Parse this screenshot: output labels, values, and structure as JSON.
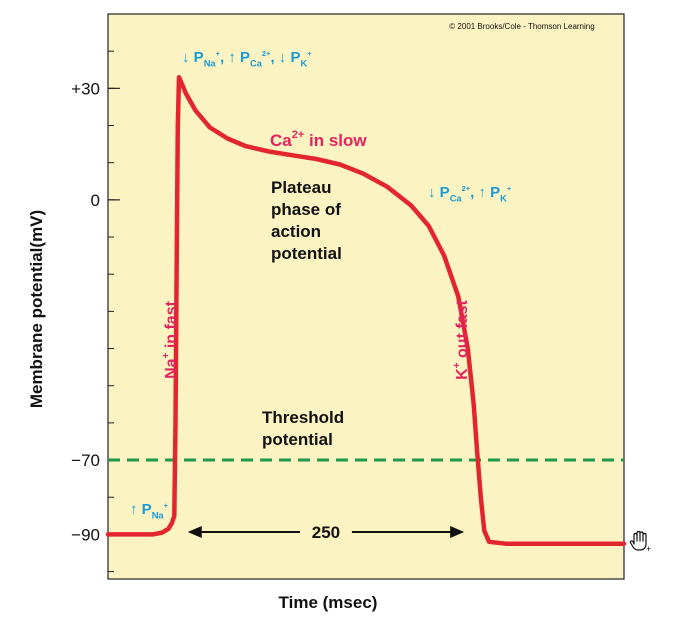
{
  "colors": {
    "plot_bg": "#fbf3c2",
    "curve": "#e3262e",
    "threshold": "#1e9a4a",
    "cyan": "#1a9bd7",
    "pink": "#e0245e",
    "text": "#111111",
    "axis": "#222222"
  },
  "copyright": "© 2001 Brooks/Cole - Thomson Learning",
  "chart_data": {
    "type": "line",
    "title": "",
    "xlabel": "Time (msec)",
    "ylabel": "Membrane potential(mV)",
    "yticks": [
      {
        "value": 30,
        "label": "+30"
      },
      {
        "value": 0,
        "label": "0"
      },
      {
        "value": -70,
        "label": "−70"
      },
      {
        "value": -90,
        "label": "−90"
      }
    ],
    "ylim": [
      -102,
      50
    ],
    "xlim": [
      -56,
      380
    ],
    "grid": false,
    "series": [
      {
        "points": [
          [
            -56,
            -90
          ],
          [
            -18,
            -90
          ],
          [
            -10,
            -89.5
          ],
          [
            -5,
            -88.5
          ],
          [
            -2,
            -87
          ],
          [
            0,
            -85
          ],
          [
            1,
            -60
          ],
          [
            2,
            -20
          ],
          [
            3,
            20
          ],
          [
            4,
            33
          ],
          [
            6,
            31.5
          ],
          [
            10,
            28.5
          ],
          [
            18,
            24
          ],
          [
            30,
            19.5
          ],
          [
            45,
            16.5
          ],
          [
            60,
            14.5
          ],
          [
            80,
            13
          ],
          [
            100,
            12
          ],
          [
            120,
            11
          ],
          [
            140,
            9.5
          ],
          [
            160,
            7
          ],
          [
            180,
            3.5
          ],
          [
            200,
            -1.5
          ],
          [
            215,
            -7
          ],
          [
            228,
            -15
          ],
          [
            240,
            -26
          ],
          [
            248,
            -40
          ],
          [
            253,
            -55
          ],
          [
            256,
            -68
          ],
          [
            259,
            -80
          ],
          [
            262,
            -89
          ],
          [
            266,
            -92
          ],
          [
            280,
            -92.5
          ],
          [
            380,
            -92.5
          ]
        ]
      }
    ],
    "threshold": {
      "value": -70,
      "label_lines": [
        "Threshold",
        "potential"
      ]
    },
    "duration": {
      "from": 8,
      "to": 250,
      "label": "250"
    },
    "annotations": {
      "top_permeability": [
        {
          "arrow": "↓",
          "sym": "P",
          "sub": "Na",
          "sup": "+",
          "sep": ", "
        },
        {
          "arrow": "↑",
          "sym": "P",
          "sub": "Ca",
          "sup": "2+",
          "sep": ", "
        },
        {
          "arrow": "↓",
          "sym": "P",
          "sub": "K",
          "sup": "+",
          "sep": ""
        }
      ],
      "right_permeability": [
        {
          "arrow": "↓",
          "sym": "P",
          "sub": "Ca",
          "sup": "2+",
          "sep": ", "
        },
        {
          "arrow": "↑",
          "sym": "P",
          "sub": "K",
          "sup": "+",
          "sep": ""
        }
      ],
      "resting": {
        "arrow": "↑",
        "sym": "P",
        "sub": "Na",
        "sup": "+"
      },
      "ca_in_slow": {
        "base": "Ca",
        "sup": "2+",
        "rest": " in slow"
      },
      "plateau_lines": [
        "Plateau",
        "phase of",
        "action",
        "potential"
      ],
      "na_in_fast": {
        "base": "Na",
        "sup": "+",
        "rest": " in fast"
      },
      "k_out_fast": {
        "base": "K",
        "sup": "+",
        "rest": " out fast"
      }
    }
  }
}
